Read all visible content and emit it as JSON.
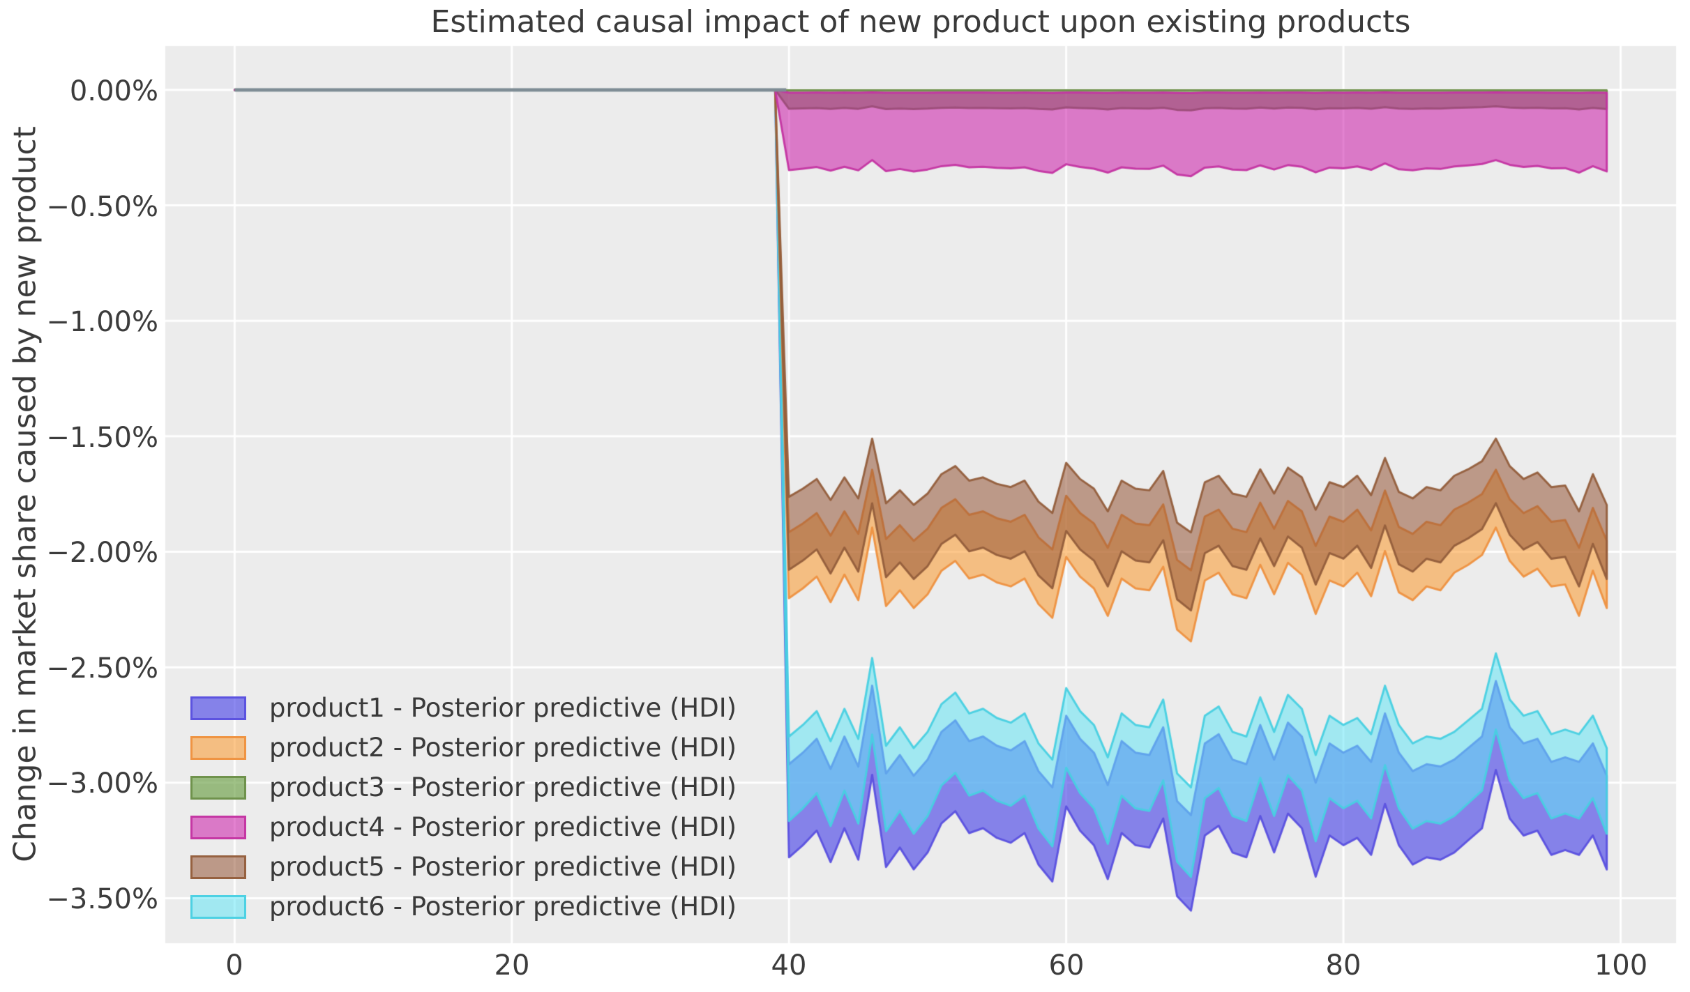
{
  "title": "Estimated causal impact of new product upon existing products",
  "colors": {
    "figure_bg": "#ffffff",
    "plot_bg": "#ececec",
    "grid": "#ffffff",
    "zero_line": "#7e8c94",
    "text": "#3a3a3a"
  },
  "chart_data": {
    "type": "area",
    "title": "Estimated causal impact of new product upon existing products",
    "xlabel": "",
    "ylabel": "Change in market share caused by new product",
    "units": "percent",
    "grid": true,
    "legend_position": "lower left",
    "xlim": [
      -5,
      104
    ],
    "ylim": [
      -3.695,
      0.19
    ],
    "x_ticks": [
      0,
      20,
      40,
      60,
      80,
      100
    ],
    "x_tick_labels": [
      "0",
      "20",
      "40",
      "60",
      "80",
      "100"
    ],
    "y_tick_values": [
      0,
      -0.5,
      -1.0,
      -1.5,
      -2.0,
      -2.5,
      -3.0,
      -3.5
    ],
    "y_tick_labels": [
      "0.00%",
      "−0.50%",
      "−1.00%",
      "−1.50%",
      "−2.00%",
      "−2.50%",
      "−3.00%",
      "−3.50%"
    ],
    "pre_period": {
      "x_start": 0,
      "x_end": 39,
      "value": 0
    },
    "zero_line": {
      "x_start": 0,
      "x_end": 39.8,
      "value": 0,
      "width": 5
    },
    "x_post": [
      40,
      41,
      42,
      43,
      44,
      45,
      46,
      47,
      48,
      49,
      50,
      51,
      52,
      53,
      54,
      55,
      56,
      57,
      58,
      59,
      60,
      61,
      62,
      63,
      64,
      65,
      66,
      67,
      68,
      69,
      70,
      71,
      72,
      73,
      74,
      75,
      76,
      77,
      78,
      79,
      80,
      81,
      82,
      83,
      84,
      85,
      86,
      87,
      88,
      89,
      90,
      91,
      92,
      93,
      94,
      95,
      96,
      97,
      98,
      99
    ],
    "noise": {
      "bottom": [
        -0.06,
        -0.01,
        0.05,
        -0.08,
        0.06,
        -0.07,
        0.28,
        -0.1,
        -0.02,
        -0.11,
        -0.04,
        0.08,
        0.13,
        0.04,
        0.06,
        0.02,
        0.0,
        0.04,
        -0.09,
        -0.16,
        0.15,
        0.05,
        -0.01,
        -0.15,
        0.04,
        -0.01,
        -0.02,
        0.1,
        -0.22,
        -0.28,
        0.03,
        0.07,
        -0.04,
        -0.06,
        0.11,
        -0.04,
        0.12,
        0.06,
        -0.14,
        0.03,
        -0.01,
        0.02,
        -0.05,
        0.16,
        -0.01,
        -0.09,
        -0.06,
        -0.07,
        -0.04,
        0.01,
        0.06,
        0.3,
        0.1,
        0.03,
        0.05,
        -0.05,
        -0.03,
        -0.05,
        0.03,
        -0.11
      ],
      "middle": [
        -0.06,
        -0.01,
        0.05,
        -0.08,
        0.06,
        -0.07,
        0.3,
        -0.1,
        -0.02,
        -0.11,
        -0.04,
        0.08,
        0.13,
        0.04,
        0.06,
        0.02,
        0.0,
        0.04,
        -0.09,
        -0.16,
        0.15,
        0.05,
        -0.01,
        -0.15,
        0.04,
        -0.01,
        -0.02,
        0.1,
        -0.22,
        -0.28,
        0.03,
        0.07,
        -0.04,
        -0.06,
        0.11,
        -0.04,
        0.12,
        0.06,
        -0.14,
        0.03,
        0.0,
        0.07,
        -0.05,
        0.18,
        -0.03,
        -0.07,
        0.0,
        -0.02,
        0.07,
        0.11,
        0.16,
        0.3,
        0.13,
        0.05,
        0.09,
        0.0,
        0.01,
        -0.15,
        0.08,
        -0.11
      ]
    },
    "series": [
      {
        "name": "product1",
        "label": "product1 - Posterior predictive (HDI)",
        "fill": "rgba(70,65,230,0.62)",
        "edge": "rgba(90,80,223,0.95)",
        "upper_base": -2.86,
        "upper_amp": 1.0,
        "lower_base": -3.26,
        "lower_amp": 1.05,
        "noise_ref": "bottom",
        "draw_order": 1,
        "summary": "flat 0 until x=39, then HDI band ~ -2.86% to -3.26%, dip to -3.5% near x=68, spikes at x=46 and x=91"
      },
      {
        "name": "product2",
        "label": "product2 - Posterior predictive (HDI)",
        "fill": "rgba(250,160,60,0.60)",
        "edge": "rgba(238,145,64,0.95)",
        "upper_base": -1.87,
        "upper_amp": 0.75,
        "lower_base": -2.15,
        "lower_amp": 0.85,
        "noise_ref": "middle",
        "draw_order": 3,
        "summary": "flat 0 until x=39, then HDI band ~ -1.87% to -2.15%, dip to -2.35% near x=68"
      },
      {
        "name": "product3",
        "label": "product3 - Posterior predictive (HDI)",
        "fill": "rgba(100,155,60,0.62)",
        "edge": "rgba(106,142,70,0.92)",
        "upper_base": -0.002,
        "upper_amp": 0.0,
        "lower_base": -0.08,
        "lower_amp": 0.03,
        "noise_ref": "middle",
        "draw_order": 5,
        "summary": "flat 0 until x=39, then narrow HDI band ~ 0% to -0.08% (overlapped by product4 band)"
      },
      {
        "name": "product4",
        "label": "product4 - Posterior predictive (HDI)",
        "fill": "rgba(202,15,165,0.52)",
        "edge": "rgba(196,52,162,0.95)",
        "upper_base": -0.012,
        "upper_amp": 0.005,
        "lower_base": -0.34,
        "lower_amp": 0.12,
        "noise_ref": "middle",
        "draw_order": 6,
        "summary": "flat 0 until x=39, then HDI band ~ -0.01% to -0.34%"
      },
      {
        "name": "product5",
        "label": "product5 - Posterior predictive (HDI)",
        "fill": "rgba(150,85,55,0.55)",
        "edge": "rgba(148,94,60,0.95)",
        "upper_base": -1.72,
        "upper_amp": 0.7,
        "lower_base": -2.03,
        "lower_amp": 0.8,
        "noise_ref": "middle",
        "draw_order": 4,
        "summary": "flat 0 until x=39, then HDI band ~ -1.72% to -2.03%, spikes to -1.50% at x=46 and x=91"
      },
      {
        "name": "product6",
        "label": "product6 - Posterior predictive (HDI)",
        "fill": "rgba(100,230,245,0.55)",
        "edge": "rgba(72,208,226,0.95)",
        "upper_base": -2.74,
        "upper_amp": 1.0,
        "lower_base": -3.1,
        "lower_amp": 1.1,
        "noise_ref": "bottom",
        "draw_order": 2,
        "summary": "flat 0 until x=39, then HDI band ~ -2.74% to -3.10%, spikes to -2.45% at x=46 and x=91"
      }
    ]
  },
  "legend": {
    "entries": [
      {
        "label": "product1 - Posterior predictive (HDI)"
      },
      {
        "label": "product2 - Posterior predictive (HDI)"
      },
      {
        "label": "product3 - Posterior predictive (HDI)"
      },
      {
        "label": "product4 - Posterior predictive (HDI)"
      },
      {
        "label": "product5 - Posterior predictive (HDI)"
      },
      {
        "label": "product6 - Posterior predictive (HDI)"
      }
    ]
  }
}
